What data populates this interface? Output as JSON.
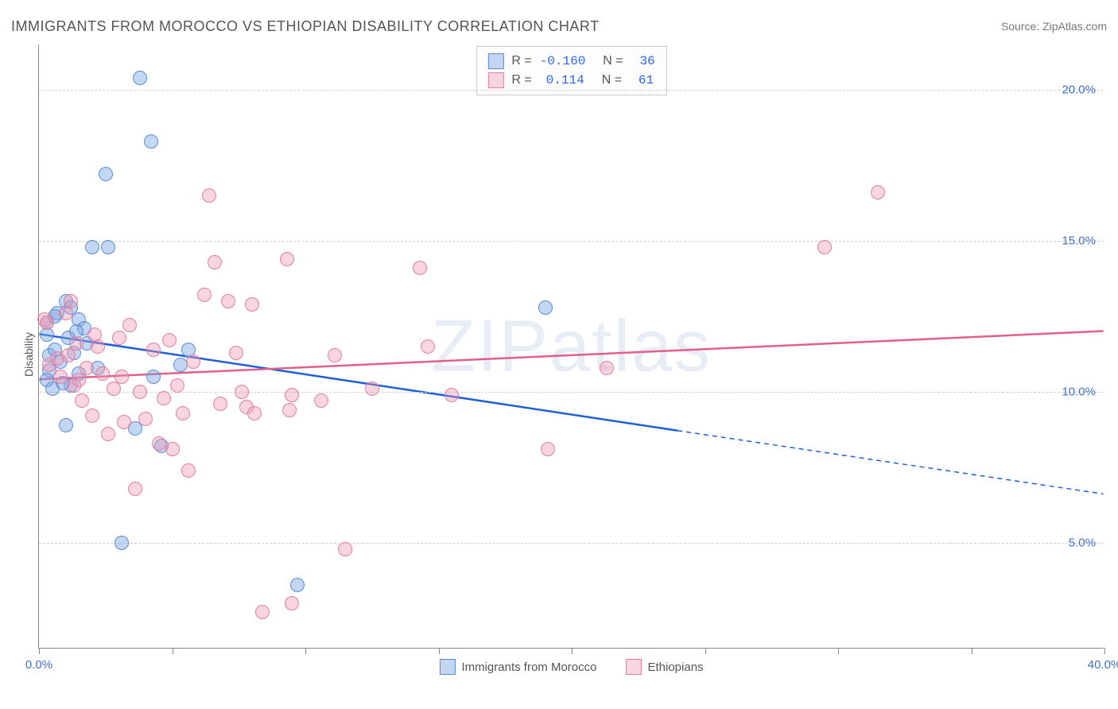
{
  "title": "IMMIGRANTS FROM MOROCCO VS ETHIOPIAN DISABILITY CORRELATION CHART",
  "source": "Source: ZipAtlas.com",
  "ylabel": "Disability",
  "watermark": "ZIPatlas",
  "chart": {
    "type": "scatter-with-trendlines",
    "xlim": [
      0,
      40
    ],
    "ylim": [
      1.5,
      21.5
    ],
    "ytick_positions": [
      5,
      10,
      15,
      20
    ],
    "ytick_labels": [
      "5.0%",
      "10.0%",
      "15.0%",
      "20.0%"
    ],
    "xtick_positions": [
      0,
      5,
      10,
      15,
      20,
      25,
      30,
      35,
      40
    ],
    "x_start_label": "0.0%",
    "x_end_label": "40.0%",
    "background_color": "#ffffff",
    "grid_color": "#d0d0d0",
    "axis_color": "#888888",
    "tick_label_color": "#3b6fd6",
    "point_radius": 9,
    "series": [
      {
        "key": "morocco",
        "label": "Immigrants from Morocco",
        "fill": "rgba(121,163,226,0.45)",
        "stroke": "#5a8ed6",
        "trend_color": "#1f5fd6",
        "trend_width": 2.5,
        "trend": {
          "x1": 0,
          "y1": 11.9,
          "x_solid_end": 24,
          "y_solid_end": 8.7,
          "x2": 40,
          "y2": 6.6
        },
        "R": "-0.160",
        "N": "36",
        "points": [
          [
            0.3,
            11.9
          ],
          [
            0.4,
            11.2
          ],
          [
            0.4,
            10.7
          ],
          [
            0.3,
            10.4
          ],
          [
            0.5,
            10.1
          ],
          [
            0.3,
            12.3
          ],
          [
            0.7,
            12.6
          ],
          [
            0.6,
            11.4
          ],
          [
            0.8,
            11.0
          ],
          [
            1.0,
            13.0
          ],
          [
            1.2,
            12.8
          ],
          [
            1.3,
            11.3
          ],
          [
            1.5,
            10.6
          ],
          [
            1.5,
            12.4
          ],
          [
            1.7,
            12.1
          ],
          [
            1.8,
            11.6
          ],
          [
            2.0,
            14.8
          ],
          [
            2.2,
            10.8
          ],
          [
            2.6,
            14.8
          ],
          [
            2.5,
            17.2
          ],
          [
            3.1,
            5.0
          ],
          [
            3.6,
            8.8
          ],
          [
            3.8,
            20.4
          ],
          [
            4.2,
            18.3
          ],
          [
            4.3,
            10.5
          ],
          [
            4.6,
            8.2
          ],
          [
            5.3,
            10.9
          ],
          [
            5.6,
            11.4
          ],
          [
            9.7,
            3.6
          ],
          [
            19.0,
            12.8
          ],
          [
            1.0,
            8.9
          ],
          [
            1.1,
            11.8
          ],
          [
            1.2,
            10.2
          ],
          [
            0.6,
            12.5
          ],
          [
            0.9,
            10.3
          ],
          [
            1.4,
            12.0
          ]
        ]
      },
      {
        "key": "ethiopians",
        "label": "Ethiopians",
        "fill": "rgba(238,150,174,0.40)",
        "stroke": "#e17ea0",
        "trend_color": "#e15f8b",
        "trend_width": 2.5,
        "trend": {
          "x1": 0,
          "y1": 10.4,
          "x_solid_end": 40,
          "y_solid_end": 12.0,
          "x2": 40,
          "y2": 12.0
        },
        "R": "0.114",
        "N": "61",
        "points": [
          [
            0.2,
            12.4
          ],
          [
            0.3,
            12.3
          ],
          [
            0.4,
            10.9
          ],
          [
            0.7,
            11.1
          ],
          [
            0.8,
            10.5
          ],
          [
            1.0,
            12.6
          ],
          [
            1.1,
            11.2
          ],
          [
            1.2,
            13.0
          ],
          [
            1.4,
            11.6
          ],
          [
            1.5,
            10.4
          ],
          [
            1.6,
            9.7
          ],
          [
            1.8,
            10.8
          ],
          [
            2.0,
            9.2
          ],
          [
            2.2,
            11.5
          ],
          [
            2.4,
            10.6
          ],
          [
            2.6,
            8.6
          ],
          [
            2.8,
            10.1
          ],
          [
            3.0,
            11.8
          ],
          [
            3.2,
            9.0
          ],
          [
            3.4,
            12.2
          ],
          [
            3.6,
            6.8
          ],
          [
            3.8,
            10.0
          ],
          [
            4.0,
            9.1
          ],
          [
            4.3,
            11.4
          ],
          [
            4.5,
            8.3
          ],
          [
            4.9,
            11.7
          ],
          [
            5.0,
            8.1
          ],
          [
            5.2,
            10.2
          ],
          [
            5.4,
            9.3
          ],
          [
            5.6,
            7.4
          ],
          [
            5.8,
            11.0
          ],
          [
            6.2,
            13.2
          ],
          [
            6.4,
            16.5
          ],
          [
            6.6,
            14.3
          ],
          [
            6.8,
            9.6
          ],
          [
            7.1,
            13.0
          ],
          [
            7.4,
            11.3
          ],
          [
            7.6,
            10.0
          ],
          [
            7.8,
            9.5
          ],
          [
            8.0,
            12.9
          ],
          [
            8.1,
            9.3
          ],
          [
            8.4,
            2.7
          ],
          [
            9.3,
            14.4
          ],
          [
            9.4,
            9.4
          ],
          [
            9.5,
            3.0
          ],
          [
            9.5,
            9.9
          ],
          [
            10.6,
            9.7
          ],
          [
            11.1,
            11.2
          ],
          [
            11.5,
            4.8
          ],
          [
            12.5,
            10.1
          ],
          [
            14.3,
            14.1
          ],
          [
            14.6,
            11.5
          ],
          [
            15.5,
            9.9
          ],
          [
            19.1,
            8.1
          ],
          [
            21.3,
            10.8
          ],
          [
            29.5,
            14.8
          ],
          [
            31.5,
            16.6
          ],
          [
            1.3,
            10.2
          ],
          [
            2.1,
            11.9
          ],
          [
            3.1,
            10.5
          ],
          [
            4.7,
            9.8
          ]
        ]
      }
    ]
  },
  "legend_bottom": [
    {
      "label": "Immigrants from Morocco",
      "series": "morocco"
    },
    {
      "label": "Ethiopians",
      "series": "ethiopians"
    }
  ]
}
